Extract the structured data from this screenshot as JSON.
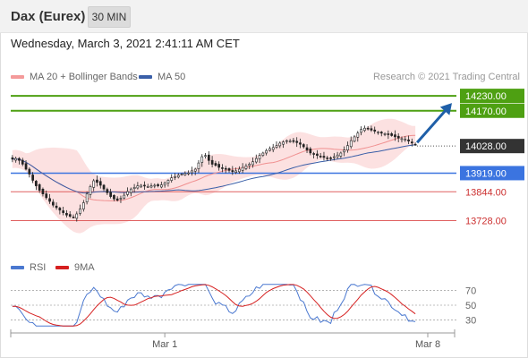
{
  "instrument": "Dax (Eurex)",
  "timeframe": "30 MIN",
  "datetime": "Wednesday, March 3, 2021 2:41:11 AM CET",
  "copyright": "Research © 2021 Trading Central",
  "colors": {
    "target": "#4ea012",
    "pivot": "#3b74e0",
    "support": "#e06060",
    "current": "#333333",
    "arrow": "#1f5fa8",
    "bollinger_fill": "#fbdcdc",
    "ma20": "#f09090",
    "ma50": "#3a5fa8",
    "rsi": "#4a78d0",
    "rsi_ma": "#d62020"
  },
  "chart_data": [
    {
      "type": "line",
      "title": "",
      "xlabel": "",
      "ylabel": "",
      "ylim": [
        13600,
        14270
      ],
      "x_ticks": [
        "Mar 1",
        "Mar 8"
      ],
      "legend": [
        {
          "name": "MA 20 + Bollinger Bands",
          "color": "#f09090"
        },
        {
          "name": "MA 50",
          "color": "#3a5fa8"
        }
      ],
      "levels": [
        {
          "label": "14230.00",
          "value": 14230,
          "kind": "target"
        },
        {
          "label": "14170.00",
          "value": 14170,
          "kind": "target"
        },
        {
          "label": "14028.00",
          "value": 14028,
          "kind": "current"
        },
        {
          "label": "13919.00",
          "value": 13919,
          "kind": "pivot"
        },
        {
          "label": "13844.00",
          "value": 13844,
          "kind": "support"
        },
        {
          "label": "13728.00",
          "value": 13728,
          "kind": "support"
        }
      ],
      "series": [
        {
          "values": [
            13975,
            13978,
            13970,
            13955,
            13935,
            13915,
            13890,
            13868,
            13850,
            13835,
            13820,
            13805,
            13790,
            13780,
            13770,
            13760,
            13750,
            13745,
            13742,
            13755,
            13775,
            13800,
            13835,
            13865,
            13888,
            13882,
            13870,
            13855,
            13840,
            13825,
            13815,
            13810,
            13818,
            13830,
            13845,
            13855,
            13862,
            13868,
            13870,
            13868,
            13865,
            13868,
            13870,
            13868,
            13872,
            13880,
            13890,
            13900,
            13905,
            13910,
            13915,
            13918,
            13920,
            13928,
            13935,
            13960,
            13985,
            13990,
            13970,
            13955,
            13950,
            13942,
            13938,
            13935,
            13930,
            13925,
            13928,
            13935,
            13942,
            13948,
            13955,
            13965,
            13978,
            13990,
            14000,
            14010,
            14018,
            14022,
            14030,
            14040,
            14045,
            14050,
            14048,
            14046,
            14042,
            14035,
            14025,
            14012,
            14000,
            13995,
            13990,
            13985,
            13982,
            13980,
            13978,
            13985,
            13992,
            14000,
            14012,
            14030,
            14050,
            14065,
            14080,
            14095,
            14100,
            14098,
            14092,
            14088,
            14085,
            14080,
            14078,
            14074,
            14070,
            14065,
            14060,
            14058,
            14055,
            14048,
            14040,
            14035
          ]
        }
      ]
    },
    {
      "type": "line",
      "title": "",
      "ylim": [
        15,
        85
      ],
      "y_ticks": [
        70,
        50,
        30
      ],
      "legend": [
        {
          "name": "RSI",
          "color": "#4a78d0"
        },
        {
          "name": "9MA",
          "color": "#d62020"
        }
      ],
      "series": []
    }
  ]
}
